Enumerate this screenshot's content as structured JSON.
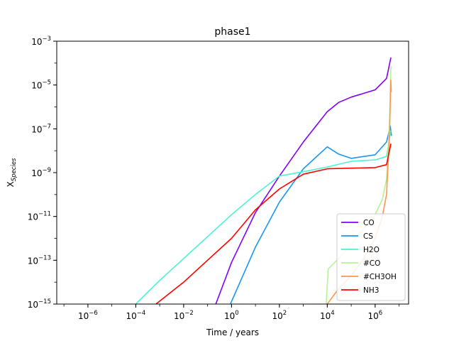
{
  "chart_data": {
    "type": "line",
    "title": "phase1",
    "xlabel": "Time / years",
    "ylabel_main": "X",
    "ylabel_sub": "Species",
    "xscale": "log",
    "yscale": "log",
    "xlim": [
      5e-08,
      25000000.0
    ],
    "ylim": [
      1e-15,
      0.001
    ],
    "grid": false,
    "legend_position": "lower right",
    "x_tick_labels": [
      {
        "value": 1e-06,
        "base": "10",
        "exp": "−6"
      },
      {
        "value": 0.0001,
        "base": "10",
        "exp": "−4"
      },
      {
        "value": 0.01,
        "base": "10",
        "exp": "−2"
      },
      {
        "value": 1,
        "base": "10",
        "exp": "0"
      },
      {
        "value": 100.0,
        "base": "10",
        "exp": "2"
      },
      {
        "value": 10000.0,
        "base": "10",
        "exp": "4"
      },
      {
        "value": 1000000.0,
        "base": "10",
        "exp": "6"
      }
    ],
    "y_tick_labels": [
      {
        "value": 1e-15,
        "base": "10",
        "exp": "−15"
      },
      {
        "value": 1e-13,
        "base": "10",
        "exp": "−13"
      },
      {
        "value": 1e-11,
        "base": "10",
        "exp": "−11"
      },
      {
        "value": 1e-09,
        "base": "10",
        "exp": "−9"
      },
      {
        "value": 1e-07,
        "base": "10",
        "exp": "−7"
      },
      {
        "value": 1e-05,
        "base": "10",
        "exp": "−5"
      },
      {
        "value": 0.001,
        "base": "10",
        "exp": "−3"
      }
    ],
    "series": [
      {
        "name": "CO",
        "color": "#8000ff",
        "points": [
          [
            0.22,
            1e-15
          ],
          [
            1,
            8e-14
          ],
          [
            10,
            1.5e-11
          ],
          [
            100,
            7e-10
          ],
          [
            1000,
            2.5e-08
          ],
          [
            10000,
            6e-07
          ],
          [
            30000,
            1.6e-06
          ],
          [
            100000,
            2.8e-06
          ],
          [
            1000000,
            6e-06
          ],
          [
            3000000,
            2e-05
          ],
          [
            4500000,
            0.00017
          ]
        ]
      },
      {
        "name": "CS",
        "color": "#1996f3",
        "points": [
          [
            0.9,
            1e-15
          ],
          [
            10,
            4e-13
          ],
          [
            100,
            4.5e-11
          ],
          [
            1000,
            1.5e-09
          ],
          [
            10000,
            1.5e-08
          ],
          [
            30000,
            7e-09
          ],
          [
            100000,
            4.5e-09
          ],
          [
            1000000,
            6.5e-09
          ],
          [
            3000000,
            2.5e-08
          ],
          [
            4300000,
            1.3e-07
          ],
          [
            4800000,
            5e-08
          ]
        ]
      },
      {
        "name": "H2O",
        "color": "#4df3ce",
        "points": [
          [
            0.0001,
            1e-15
          ],
          [
            0.001,
            1.2e-14
          ],
          [
            0.01,
            1.2e-13
          ],
          [
            0.1,
            1.2e-12
          ],
          [
            1,
            1.2e-11
          ],
          [
            10,
            1e-10
          ],
          [
            100,
            7e-10
          ],
          [
            1000,
            1.1e-09
          ],
          [
            10000,
            1.8e-09
          ],
          [
            100000,
            3.3e-09
          ],
          [
            1000000,
            3.8e-09
          ],
          [
            3000000,
            5.5e-09
          ],
          [
            4500000,
            8e-08
          ]
        ]
      },
      {
        "name": "#CO",
        "color": "#b3f396",
        "points": [
          [
            9000,
            1e-15
          ],
          [
            11000,
            4e-14
          ],
          [
            30000,
            1.2e-13
          ],
          [
            100000,
            5e-13
          ],
          [
            300000,
            2.5e-12
          ],
          [
            1000000,
            1.2e-11
          ],
          [
            2000000,
            6e-11
          ],
          [
            3000000,
            5e-10
          ],
          [
            4000000,
            2e-07
          ],
          [
            4500000,
            5e-05
          ],
          [
            4800000,
            7e-05
          ]
        ]
      },
      {
        "name": "#CH3OH",
        "color": "#ff964f",
        "points": [
          [
            10000,
            1e-15
          ],
          [
            30000,
            5e-15
          ],
          [
            100000,
            2e-14
          ],
          [
            300000,
            1e-13
          ],
          [
            1000000,
            1e-12
          ],
          [
            2000000,
            1e-11
          ],
          [
            3000000,
            1e-10
          ],
          [
            4000000,
            5e-08
          ],
          [
            4500000,
            1.7e-05
          ],
          [
            4700000,
            5e-06
          ]
        ]
      },
      {
        "name": "NH3",
        "color": "#ff0000",
        "points": [
          [
            0.0007,
            1e-15
          ],
          [
            0.01,
            1e-14
          ],
          [
            0.1,
            1e-13
          ],
          [
            1,
            1e-12
          ],
          [
            10,
            2e-11
          ],
          [
            100,
            1.8e-10
          ],
          [
            1000,
            8.5e-10
          ],
          [
            10000,
            1.5e-09
          ],
          [
            100000,
            1.6e-09
          ],
          [
            1000000,
            1.7e-09
          ],
          [
            3000000,
            2.3e-09
          ],
          [
            4500000,
            2e-08
          ]
        ]
      }
    ]
  }
}
